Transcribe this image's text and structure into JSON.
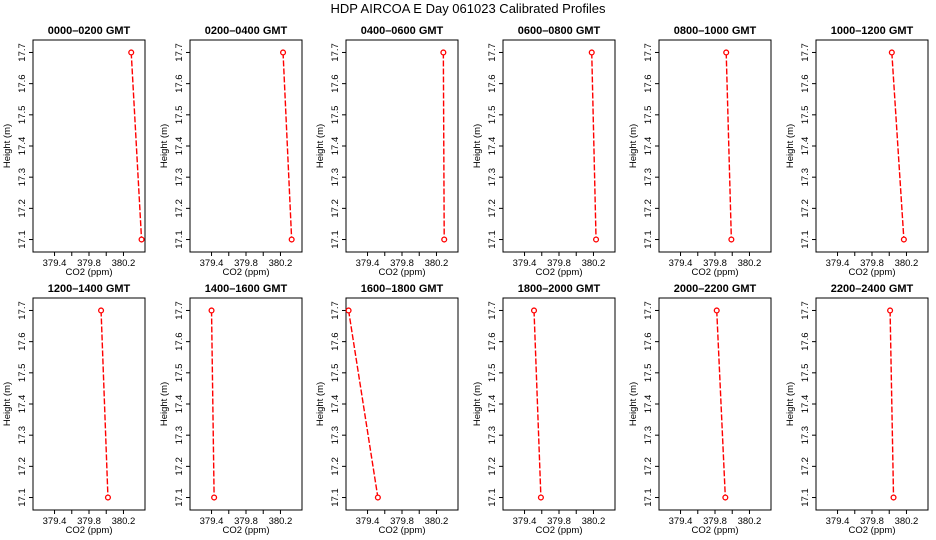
{
  "title": "HDP  AIRCOA E  Day 061023  Calibrated Profiles",
  "colors": {
    "line": "#ff0000",
    "axis": "#000000",
    "background": "#ffffff"
  },
  "chart_data": {
    "type": "line",
    "grid": false,
    "legend": "none",
    "layout": {
      "rows": 2,
      "cols": 6
    },
    "xlabel": "CO2 (ppm)",
    "ylabel": "Height (m)",
    "xlim": [
      379.15,
      380.45
    ],
    "ylim": [
      17.06,
      17.74
    ],
    "xticks": [
      379.4,
      379.6,
      379.8,
      380.0,
      380.2
    ],
    "xtick_labels": [
      "379.4",
      "",
      "379.8",
      "",
      "380.2"
    ],
    "yticks": [
      17.1,
      17.2,
      17.3,
      17.4,
      17.5,
      17.6,
      17.7
    ],
    "ytick_labels": [
      "17.1",
      "17.2",
      "17.3",
      "17.4",
      "17.5",
      "17.6",
      "17.7"
    ],
    "panels": [
      {
        "title": "0000–0200 GMT",
        "points": [
          {
            "x": 380.29,
            "y": 17.7
          },
          {
            "x": 380.41,
            "y": 17.1
          }
        ]
      },
      {
        "title": "0200–0400 GMT",
        "points": [
          {
            "x": 380.23,
            "y": 17.7
          },
          {
            "x": 380.33,
            "y": 17.1
          }
        ]
      },
      {
        "title": "0400–0600 GMT",
        "points": [
          {
            "x": 380.28,
            "y": 17.7
          },
          {
            "x": 380.29,
            "y": 17.1
          }
        ]
      },
      {
        "title": "0600–0800 GMT",
        "points": [
          {
            "x": 380.18,
            "y": 17.7
          },
          {
            "x": 380.23,
            "y": 17.1
          }
        ]
      },
      {
        "title": "0800–1000 GMT",
        "points": [
          {
            "x": 379.93,
            "y": 17.7
          },
          {
            "x": 379.99,
            "y": 17.1
          }
        ]
      },
      {
        "title": "1000–1200 GMT",
        "points": [
          {
            "x": 380.03,
            "y": 17.7
          },
          {
            "x": 380.17,
            "y": 17.1
          }
        ]
      },
      {
        "title": "1200–1400 GMT",
        "points": [
          {
            "x": 379.94,
            "y": 17.7
          },
          {
            "x": 380.02,
            "y": 17.1
          }
        ]
      },
      {
        "title": "1400–1600 GMT",
        "points": [
          {
            "x": 379.4,
            "y": 17.7
          },
          {
            "x": 379.43,
            "y": 17.1
          }
        ]
      },
      {
        "title": "1600–1800 GMT",
        "points": [
          {
            "x": 379.18,
            "y": 17.7
          },
          {
            "x": 379.52,
            "y": 17.1
          }
        ]
      },
      {
        "title": "1800–2000 GMT",
        "points": [
          {
            "x": 379.51,
            "y": 17.7
          },
          {
            "x": 379.59,
            "y": 17.1
          }
        ]
      },
      {
        "title": "2000–2200 GMT",
        "points": [
          {
            "x": 379.82,
            "y": 17.7
          },
          {
            "x": 379.92,
            "y": 17.1
          }
        ]
      },
      {
        "title": "2200–2400 GMT",
        "points": [
          {
            "x": 380.01,
            "y": 17.7
          },
          {
            "x": 380.05,
            "y": 17.1
          }
        ]
      }
    ]
  }
}
